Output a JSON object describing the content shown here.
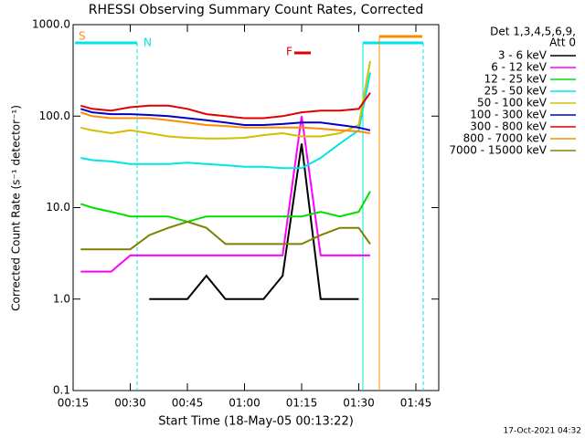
{
  "chart_data": {
    "type": "line",
    "title": "RHESSI Observing Summary Count Rates, Corrected",
    "x_label": "Start Time (18-May-05 00:13:22)",
    "y_label": "Corrected Count Rate (s⁻¹ detector⁻¹)",
    "legend_title": [
      "Det 1,3,4,5,6,9,",
      "Att 0"
    ],
    "footer": "17-Oct-2021 04:32",
    "log_y": true,
    "x": [
      17,
      20,
      25,
      30,
      35,
      40,
      45,
      50,
      55,
      60,
      65,
      70,
      75,
      80,
      85,
      90,
      93
    ],
    "xlim": [
      15,
      111
    ],
    "xticks": [
      {
        "value": 15,
        "label": "00:15"
      },
      {
        "value": 30,
        "label": "00:30"
      },
      {
        "value": 45,
        "label": "00:45"
      },
      {
        "value": 60,
        "label": "01:00"
      },
      {
        "value": 75,
        "label": "01:15"
      },
      {
        "value": 90,
        "label": "01:30"
      },
      {
        "value": 105,
        "label": "01:45"
      }
    ],
    "ylim": [
      0.1,
      1000
    ],
    "yticks": [
      0.1,
      {
        "value": 1,
        "label": "1.0"
      },
      {
        "value": 10,
        "label": "10.0"
      },
      {
        "value": 100,
        "label": "100.0"
      },
      {
        "value": 1000,
        "label": "1000.0"
      }
    ],
    "annotations": [
      {
        "text": "S",
        "color": "#ff8c00"
      },
      {
        "text": "N",
        "color": "#00e5e5"
      },
      {
        "text": "F",
        "color": "#e00000"
      }
    ],
    "series": [
      {
        "name": "3 - 6 keV",
        "color": "#000000",
        "values": [
          null,
          null,
          null,
          null,
          1,
          1,
          1,
          1.8,
          1,
          1,
          1,
          1.8,
          50,
          1,
          1,
          1,
          null
        ]
      },
      {
        "name": "6 - 12 keV",
        "color": "#ff00ff",
        "values": [
          2,
          2,
          2,
          3,
          3,
          3,
          3,
          3,
          3,
          3,
          3,
          3,
          100,
          3,
          3,
          3,
          3
        ]
      },
      {
        "name": "12 - 25 keV",
        "color": "#00e000",
        "values": [
          11,
          10,
          9,
          8,
          8,
          8,
          7,
          8,
          8,
          8,
          8,
          8,
          8,
          9,
          8,
          9,
          15
        ]
      },
      {
        "name": "25 - 50 keV",
        "color": "#00e5e5",
        "values": [
          35,
          33,
          32,
          30,
          30,
          30,
          31,
          30,
          29,
          28,
          28,
          27,
          27,
          35,
          50,
          70,
          300
        ]
      },
      {
        "name": "50 - 100 keV",
        "color": "#d0c000",
        "values": [
          75,
          70,
          65,
          70,
          65,
          60,
          58,
          57,
          57,
          58,
          62,
          65,
          60,
          60,
          65,
          80,
          400
        ]
      },
      {
        "name": "100 - 300 keV",
        "color": "#0000c8",
        "values": [
          120,
          110,
          105,
          105,
          103,
          100,
          95,
          90,
          85,
          80,
          80,
          82,
          85,
          85,
          80,
          75,
          70
        ]
      },
      {
        "name": "300 - 800 keV",
        "color": "#e00000",
        "values": [
          130,
          120,
          115,
          125,
          130,
          130,
          120,
          105,
          100,
          95,
          95,
          100,
          110,
          115,
          115,
          120,
          180
        ]
      },
      {
        "name": "800 - 7000 keV",
        "color": "#ff8c00",
        "values": [
          110,
          100,
          95,
          95,
          95,
          90,
          85,
          80,
          78,
          75,
          75,
          75,
          75,
          73,
          70,
          68,
          65
        ]
      },
      {
        "name": "7000 - 15000 keV",
        "color": "#808000",
        "values": [
          3.5,
          3.5,
          3.5,
          3.5,
          5,
          6,
          7,
          6,
          4,
          4,
          4,
          4,
          4,
          5,
          6,
          6,
          4
        ]
      }
    ]
  }
}
